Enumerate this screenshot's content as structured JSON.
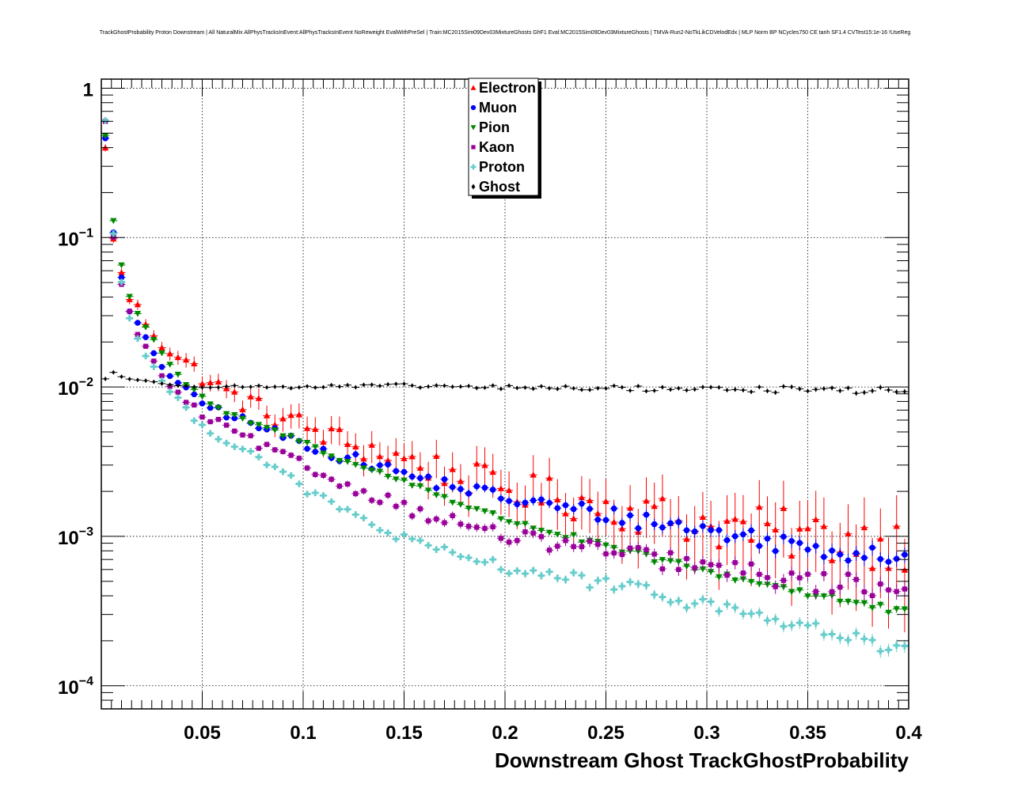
{
  "chart_data": {
    "type": "scatter",
    "title": "TrackGhostProbability Proton Downstream | All NaturalMix AllPhysTracksInEvent:AllPhysTracksInEvent NoReweight EvalWithPreSel | Train:MC2015Sim09Dev03MixtureGhosts GhF1 Eval:MC2015Sim09Dev03MixtureGhosts | TMVA-Run2-NoTkLikCDVelodEdx | MLP Norm BP NCycles750 CE tanh SF1.4 CVTest15:1e-16 !UseReg",
    "xlabel": "Downstream Ghost TrackGhostProbability",
    "ylabel": "",
    "xlim": [
      0.0,
      0.4
    ],
    "ylim": [
      7e-05,
      1.15
    ],
    "log_y": true,
    "grid": true,
    "legend_position": "top-center",
    "x_ticks": [
      {
        "value": 0.05,
        "label": "0.05"
      },
      {
        "value": 0.1,
        "label": "0.1"
      },
      {
        "value": 0.15,
        "label": "0.15"
      },
      {
        "value": 0.2,
        "label": "0.2"
      },
      {
        "value": 0.25,
        "label": "0.25"
      },
      {
        "value": 0.3,
        "label": "0.3"
      },
      {
        "value": 0.35,
        "label": "0.35"
      },
      {
        "value": 0.4,
        "label": "0.4"
      }
    ],
    "y_ticks": [
      {
        "value": 1,
        "base": "1",
        "exp": ""
      },
      {
        "value": 0.1,
        "base": "10",
        "exp": "−1"
      },
      {
        "value": 0.01,
        "base": "10",
        "exp": "−2"
      },
      {
        "value": 0.001,
        "base": "10",
        "exp": "−3"
      },
      {
        "value": 0.0001,
        "base": "10",
        "exp": "−4"
      }
    ],
    "bins": 100,
    "series": [
      {
        "name": "Electron",
        "color": "#ff0000",
        "marker": "triangle-up",
        "anchors": [
          [
            0.002,
            0.38
          ],
          [
            0.006,
            0.105
          ],
          [
            0.01,
            0.055
          ],
          [
            0.014,
            0.04
          ],
          [
            0.02,
            0.03
          ],
          [
            0.03,
            0.02
          ],
          [
            0.04,
            0.015
          ],
          [
            0.05,
            0.012
          ],
          [
            0.06,
            0.0095
          ],
          [
            0.08,
            0.007
          ],
          [
            0.1,
            0.0055
          ],
          [
            0.12,
            0.0043
          ],
          [
            0.14,
            0.0036
          ],
          [
            0.16,
            0.003
          ],
          [
            0.18,
            0.0025
          ],
          [
            0.2,
            0.0021
          ],
          [
            0.25,
            0.0016
          ],
          [
            0.3,
            0.0012
          ],
          [
            0.35,
            0.001
          ],
          [
            0.4,
            0.0009
          ]
        ],
        "noise": 0.12,
        "rel_err": 0.13
      },
      {
        "name": "Muon",
        "color": "#0000ff",
        "marker": "circle",
        "anchors": [
          [
            0.002,
            0.48
          ],
          [
            0.006,
            0.105
          ],
          [
            0.01,
            0.053
          ],
          [
            0.014,
            0.032
          ],
          [
            0.02,
            0.023
          ],
          [
            0.03,
            0.014
          ],
          [
            0.04,
            0.0098
          ],
          [
            0.05,
            0.0078
          ],
          [
            0.06,
            0.0068
          ],
          [
            0.08,
            0.0053
          ],
          [
            0.1,
            0.0042
          ],
          [
            0.12,
            0.0034
          ],
          [
            0.14,
            0.0029
          ],
          [
            0.16,
            0.0024
          ],
          [
            0.18,
            0.0021
          ],
          [
            0.2,
            0.0018
          ],
          [
            0.25,
            0.0014
          ],
          [
            0.3,
            0.0011
          ],
          [
            0.35,
            0.00085
          ],
          [
            0.4,
            0.00075
          ]
        ],
        "noise": 0.05,
        "rel_err": 0.06
      },
      {
        "name": "Pion",
        "color": "#008800",
        "marker": "triangle-down",
        "anchors": [
          [
            0.002,
            0.48
          ],
          [
            0.006,
            0.13
          ],
          [
            0.01,
            0.065
          ],
          [
            0.014,
            0.04
          ],
          [
            0.02,
            0.028
          ],
          [
            0.03,
            0.017
          ],
          [
            0.04,
            0.011
          ],
          [
            0.05,
            0.0085
          ],
          [
            0.06,
            0.0068
          ],
          [
            0.08,
            0.0054
          ],
          [
            0.1,
            0.0043
          ],
          [
            0.12,
            0.0032
          ],
          [
            0.14,
            0.0026
          ],
          [
            0.16,
            0.0021
          ],
          [
            0.18,
            0.0016
          ],
          [
            0.2,
            0.0013
          ],
          [
            0.25,
            0.00085
          ],
          [
            0.3,
            0.00058
          ],
          [
            0.35,
            0.00042
          ],
          [
            0.4,
            0.0003
          ]
        ],
        "noise": 0.02,
        "rel_err": 0.03
      },
      {
        "name": "Kaon",
        "color": "#990099",
        "marker": "square",
        "anchors": [
          [
            0.002,
            0.58
          ],
          [
            0.006,
            0.105
          ],
          [
            0.01,
            0.048
          ],
          [
            0.014,
            0.031
          ],
          [
            0.02,
            0.02
          ],
          [
            0.03,
            0.012
          ],
          [
            0.04,
            0.0082
          ],
          [
            0.05,
            0.0065
          ],
          [
            0.06,
            0.0055
          ],
          [
            0.08,
            0.004
          ],
          [
            0.1,
            0.003
          ],
          [
            0.12,
            0.0022
          ],
          [
            0.14,
            0.0018
          ],
          [
            0.16,
            0.0014
          ],
          [
            0.18,
            0.0012
          ],
          [
            0.2,
            0.001
          ],
          [
            0.25,
            0.0008
          ],
          [
            0.3,
            0.00062
          ],
          [
            0.35,
            0.0005
          ],
          [
            0.4,
            0.00045
          ]
        ],
        "noise": 0.05,
        "rel_err": 0.06
      },
      {
        "name": "Proton",
        "color": "#66cccc",
        "marker": "cross",
        "anchors": [
          [
            0.002,
            0.62
          ],
          [
            0.006,
            0.105
          ],
          [
            0.01,
            0.05
          ],
          [
            0.014,
            0.03
          ],
          [
            0.02,
            0.018
          ],
          [
            0.03,
            0.011
          ],
          [
            0.04,
            0.0075
          ],
          [
            0.05,
            0.0055
          ],
          [
            0.06,
            0.0045
          ],
          [
            0.08,
            0.0033
          ],
          [
            0.1,
            0.0021
          ],
          [
            0.12,
            0.0015
          ],
          [
            0.14,
            0.0011
          ],
          [
            0.16,
            0.00085
          ],
          [
            0.18,
            0.00072
          ],
          [
            0.2,
            0.00062
          ],
          [
            0.25,
            0.00048
          ],
          [
            0.3,
            0.00035
          ],
          [
            0.35,
            0.00025
          ],
          [
            0.4,
            0.00016
          ]
        ],
        "noise": 0.04,
        "rel_err": 0.05
      },
      {
        "name": "Ghost",
        "color": "#000000",
        "marker": "diamond",
        "anchors": [
          [
            0.002,
            0.0113
          ],
          [
            0.006,
            0.0126
          ],
          [
            0.01,
            0.0117
          ],
          [
            0.02,
            0.011
          ],
          [
            0.03,
            0.0105
          ],
          [
            0.05,
            0.0101
          ],
          [
            0.1,
            0.01
          ],
          [
            0.15,
            0.0102
          ],
          [
            0.2,
            0.0099
          ],
          [
            0.25,
            0.0098
          ],
          [
            0.3,
            0.0097
          ],
          [
            0.35,
            0.0096
          ],
          [
            0.4,
            0.0094
          ]
        ],
        "noise": 0.015,
        "rel_err": 0.02
      }
    ]
  }
}
